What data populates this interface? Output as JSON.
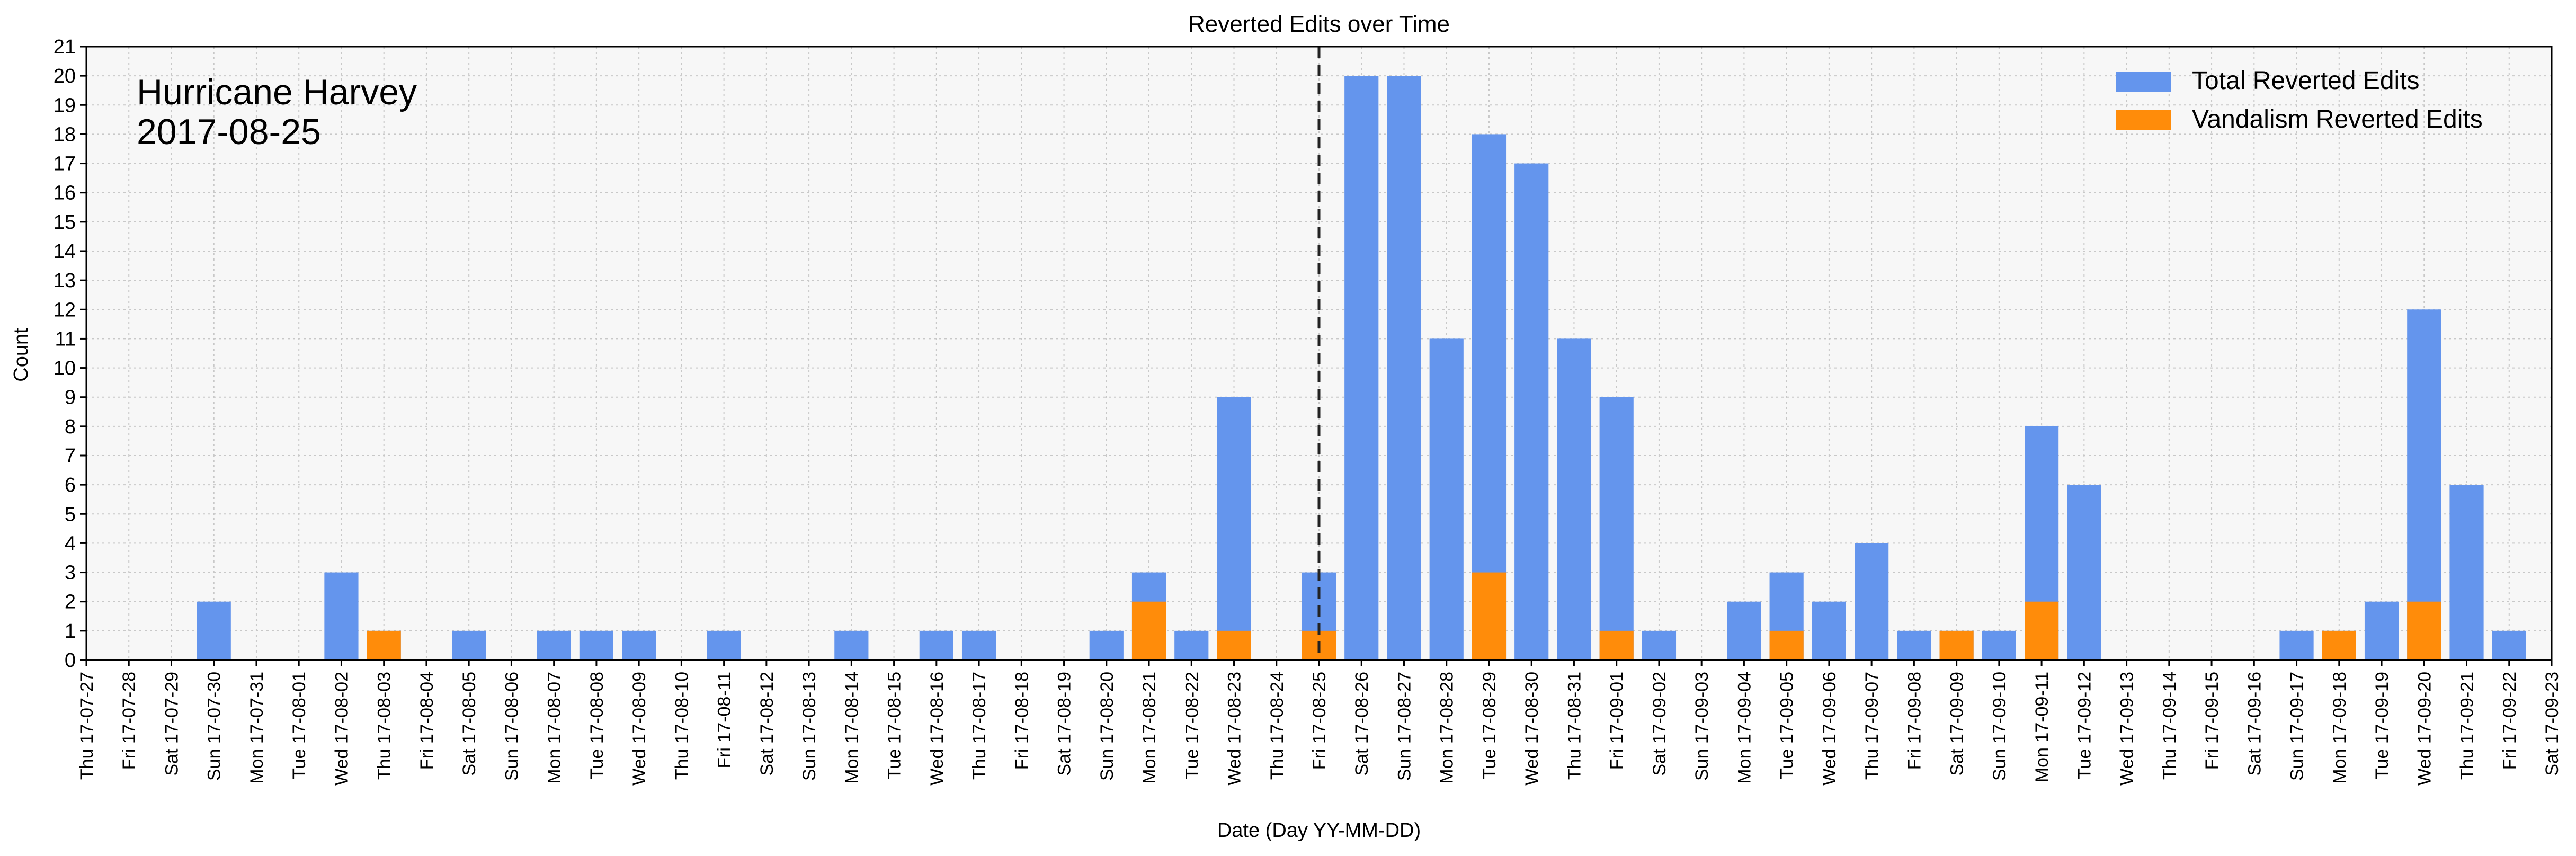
{
  "chart_data": {
    "type": "bar",
    "title": "Reverted Edits over Time",
    "xlabel": "Date (Day YY-MM-DD)",
    "ylabel": "Count",
    "ylim": [
      0,
      21
    ],
    "yticks": [
      0,
      1,
      2,
      3,
      4,
      5,
      6,
      7,
      8,
      9,
      10,
      11,
      12,
      13,
      14,
      15,
      16,
      17,
      18,
      19,
      20,
      21
    ],
    "grid": true,
    "legend_position": "top-right",
    "annotation": {
      "line1": "Hurricane Harvey",
      "line2": "2017-08-25",
      "event_date": "17-08-25",
      "marker": "dashed vertical line"
    },
    "categories": [
      "Thu 17-07-27",
      "Fri 17-07-28",
      "Sat 17-07-29",
      "Sun 17-07-30",
      "Mon 17-07-31",
      "Tue 17-08-01",
      "Wed 17-08-02",
      "Thu 17-08-03",
      "Fri 17-08-04",
      "Sat 17-08-05",
      "Sun 17-08-06",
      "Mon 17-08-07",
      "Tue 17-08-08",
      "Wed 17-08-09",
      "Thu 17-08-10",
      "Fri 17-08-11",
      "Sat 17-08-12",
      "Sun 17-08-13",
      "Mon 17-08-14",
      "Tue 17-08-15",
      "Wed 17-08-16",
      "Thu 17-08-17",
      "Fri 17-08-18",
      "Sat 17-08-19",
      "Sun 17-08-20",
      "Mon 17-08-21",
      "Tue 17-08-22",
      "Wed 17-08-23",
      "Thu 17-08-24",
      "Fri 17-08-25",
      "Sat 17-08-26",
      "Sun 17-08-27",
      "Mon 17-08-28",
      "Tue 17-08-29",
      "Wed 17-08-30",
      "Thu 17-08-31",
      "Fri 17-09-01",
      "Sat 17-09-02",
      "Sun 17-09-03",
      "Mon 17-09-04",
      "Tue 17-09-05",
      "Wed 17-09-06",
      "Thu 17-09-07",
      "Fri 17-09-08",
      "Sat 17-09-09",
      "Sun 17-09-10",
      "Mon 17-09-11",
      "Tue 17-09-12",
      "Wed 17-09-13",
      "Thu 17-09-14",
      "Fri 17-09-15",
      "Sat 17-09-16",
      "Sun 17-09-17",
      "Mon 17-09-18",
      "Tue 17-09-19",
      "Wed 17-09-20",
      "Thu 17-09-21",
      "Fri 17-09-22",
      "Sat 17-09-23"
    ],
    "series": [
      {
        "name": "Total Reverted Edits",
        "color": "#6495ed",
        "values": [
          0,
          0,
          0,
          2,
          0,
          0,
          3,
          1,
          0,
          1,
          0,
          1,
          1,
          1,
          0,
          1,
          0,
          0,
          1,
          0,
          1,
          1,
          0,
          0,
          1,
          3,
          1,
          9,
          0,
          3,
          20,
          20,
          11,
          18,
          17,
          11,
          9,
          1,
          0,
          2,
          3,
          2,
          4,
          1,
          1,
          1,
          8,
          6,
          0,
          0,
          0,
          0,
          1,
          1,
          2,
          12,
          6,
          1,
          0
        ]
      },
      {
        "name": "Vandalism Reverted Edits",
        "color": "#ff8c0a",
        "values": [
          0,
          0,
          0,
          0,
          0,
          0,
          0,
          1,
          0,
          0,
          0,
          0,
          0,
          0,
          0,
          0,
          0,
          0,
          0,
          0,
          0,
          0,
          0,
          0,
          0,
          2,
          0,
          1,
          0,
          1,
          0,
          0,
          0,
          3,
          0,
          0,
          1,
          0,
          0,
          0,
          1,
          0,
          0,
          0,
          1,
          0,
          2,
          0,
          0,
          0,
          0,
          0,
          0,
          1,
          0,
          2,
          0,
          0,
          0
        ]
      }
    ]
  }
}
